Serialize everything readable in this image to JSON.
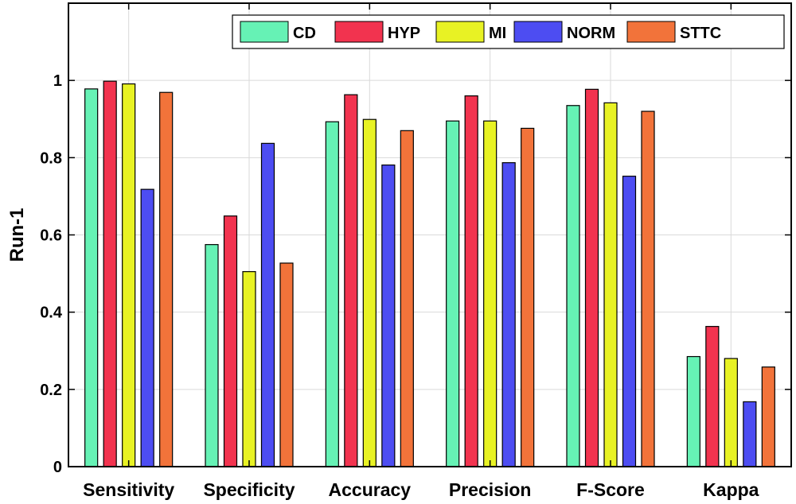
{
  "chart_data": {
    "type": "bar",
    "title": "",
    "xlabel": "",
    "ylabel": "Run-1",
    "ylim": [
      0,
      1.2
    ],
    "yticks": [
      0,
      0.2,
      0.4,
      0.6,
      0.8,
      1
    ],
    "ytick_labels": [
      "0",
      "0.2",
      "0.4",
      "0.6",
      "0.8",
      "1"
    ],
    "grid": true,
    "legend_position": "top-right",
    "categories": [
      "Sensitivity",
      "Specificity",
      "Accuracy",
      "Precision",
      "F-Score",
      "Kappa"
    ],
    "series": [
      {
        "name": "CD",
        "color": "#66f2b5",
        "values": [
          0.978,
          0.575,
          0.893,
          0.895,
          0.935,
          0.285
        ]
      },
      {
        "name": "HYP",
        "color": "#f2334f",
        "values": [
          0.998,
          0.649,
          0.963,
          0.96,
          0.977,
          0.363
        ]
      },
      {
        "name": "MI",
        "color": "#e8f224",
        "values": [
          0.991,
          0.505,
          0.899,
          0.895,
          0.942,
          0.28
        ]
      },
      {
        "name": "NORM",
        "color": "#4d4df2",
        "values": [
          0.718,
          0.837,
          0.781,
          0.787,
          0.752,
          0.168
        ]
      },
      {
        "name": "STTC",
        "color": "#f2733a",
        "values": [
          0.969,
          0.527,
          0.87,
          0.876,
          0.92,
          0.258
        ]
      }
    ]
  }
}
